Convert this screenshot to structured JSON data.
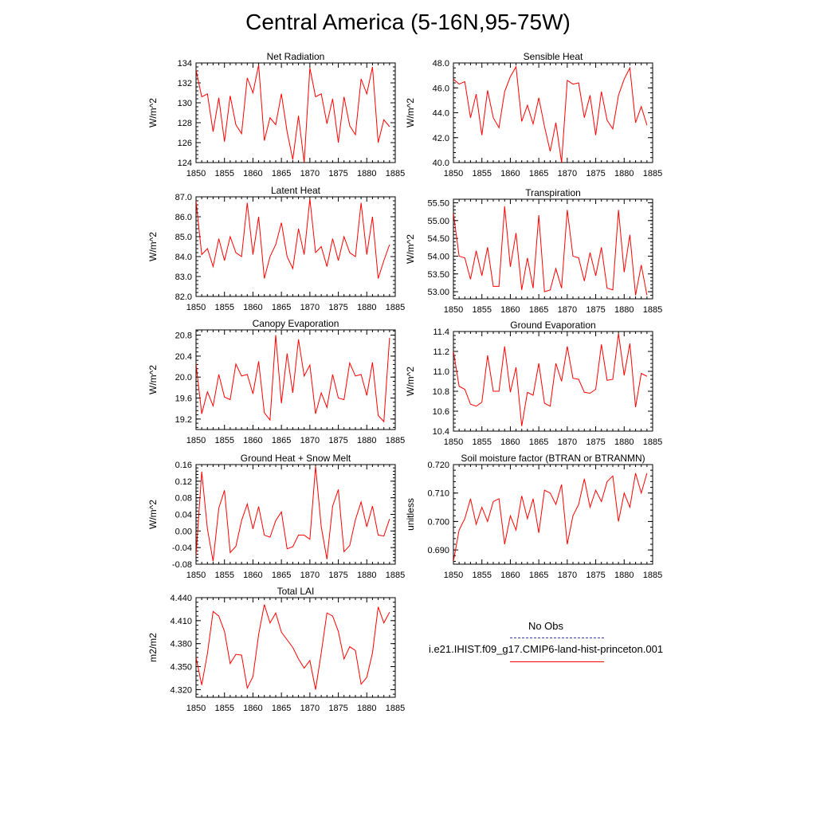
{
  "title": "Central America (5-16N,95-75W)",
  "colors": {
    "model_line": "#ff0000",
    "obs_line": "#3a3aa8"
  },
  "legend": {
    "obs_label": "No Obs",
    "model_label": "i.e21.IHIST.f09_g17.CMIP6-land-hist-princeton.001"
  },
  "chart_data": [
    {
      "type": "line",
      "title": "Net Radiation",
      "ylabel": "W/m^2",
      "xlim": [
        1850,
        1885
      ],
      "ylim": [
        124,
        134
      ],
      "xticks": [
        "1850",
        "1855",
        "1860",
        "1865",
        "1870",
        "1875",
        "1880",
        "1885"
      ],
      "yticks": [
        "124",
        "126",
        "128",
        "130",
        "132",
        "134"
      ],
      "series": [
        {
          "values": [
            133.3,
            130.6,
            130.9,
            127.1,
            130.5,
            126.1,
            130.7,
            127.8,
            126.9,
            132.5,
            131.0,
            133.8,
            126.2,
            128.5,
            127.8,
            130.9,
            127.1,
            124.3,
            128.7,
            124.0,
            133.5,
            130.6,
            130.9,
            127.9,
            130.4,
            126.0,
            130.6,
            127.7,
            126.8,
            132.4,
            130.9,
            133.6,
            126.0,
            128.3,
            127.6
          ]
        }
      ]
    },
    {
      "type": "line",
      "title": "Sensible Heat",
      "ylabel": "W/m^2",
      "xlim": [
        1850,
        1885
      ],
      "ylim": [
        40.0,
        48.0
      ],
      "xticks": [
        "1850",
        "1855",
        "1860",
        "1865",
        "1870",
        "1875",
        "1880",
        "1885"
      ],
      "yticks": [
        "40.0",
        "42.0",
        "44.0",
        "46.0",
        "48.0"
      ],
      "series": [
        {
          "values": [
            46.7,
            46.3,
            46.5,
            43.6,
            45.5,
            42.2,
            45.8,
            43.6,
            42.8,
            45.7,
            46.9,
            47.7,
            43.3,
            44.6,
            43.1,
            45.2,
            42.9,
            40.9,
            43.2,
            40.0,
            46.6,
            46.3,
            46.4,
            43.6,
            45.4,
            42.2,
            45.7,
            43.4,
            42.7,
            45.4,
            46.7,
            47.6,
            43.2,
            44.5,
            43.0
          ]
        }
      ]
    },
    {
      "type": "line",
      "title": "Latent Heat",
      "ylabel": "W/m^2",
      "xlim": [
        1850,
        1885
      ],
      "ylim": [
        82.0,
        87.0
      ],
      "xticks": [
        "1850",
        "1855",
        "1860",
        "1865",
        "1870",
        "1875",
        "1880",
        "1885"
      ],
      "yticks": [
        "82.0",
        "83.0",
        "84.0",
        "85.0",
        "86.0",
        "87.0"
      ],
      "series": [
        {
          "values": [
            86.8,
            84.1,
            84.4,
            83.5,
            84.9,
            83.8,
            85.0,
            84.2,
            84.0,
            86.7,
            84.1,
            86.0,
            82.9,
            84.0,
            84.6,
            85.7,
            84.0,
            83.4,
            85.4,
            84.1,
            86.9,
            84.2,
            84.5,
            83.5,
            84.9,
            83.8,
            85.0,
            84.2,
            84.0,
            86.7,
            84.1,
            86.0,
            82.9,
            83.8,
            84.6
          ]
        }
      ]
    },
    {
      "type": "line",
      "title": "Transpiration",
      "ylabel": "W/m^2",
      "xlim": [
        1850,
        1885
      ],
      "ylim": [
        52.8,
        55.6
      ],
      "xticks": [
        "1850",
        "1855",
        "1860",
        "1865",
        "1870",
        "1875",
        "1880",
        "1885"
      ],
      "yticks": [
        "53.00",
        "53.50",
        "54.00",
        "54.50",
        "55.00",
        "55.50"
      ],
      "series": [
        {
          "values": [
            55.2,
            54.0,
            53.95,
            53.35,
            54.15,
            53.45,
            54.25,
            53.15,
            53.15,
            55.4,
            53.7,
            54.65,
            53.05,
            53.95,
            53.1,
            55.15,
            53.0,
            53.05,
            53.65,
            53.1,
            55.3,
            54.0,
            53.95,
            53.3,
            54.1,
            53.45,
            54.25,
            53.1,
            53.05,
            55.3,
            53.55,
            54.6,
            52.9,
            53.75,
            52.9
          ]
        }
      ]
    },
    {
      "type": "line",
      "title": "Canopy Evaporation",
      "ylabel": "W/m^2",
      "xlim": [
        1850,
        1885
      ],
      "ylim": [
        19.0,
        20.9
      ],
      "xticks": [
        "1850",
        "1855",
        "1860",
        "1865",
        "1870",
        "1875",
        "1880",
        "1885"
      ],
      "yticks": [
        "19.2",
        "19.6",
        "20.0",
        "20.4",
        "20.8"
      ],
      "series": [
        {
          "values": [
            20.25,
            19.3,
            19.72,
            19.45,
            20.05,
            19.62,
            19.57,
            20.25,
            20.02,
            20.05,
            19.68,
            20.3,
            19.32,
            19.18,
            20.8,
            19.5,
            20.45,
            19.7,
            20.72,
            20.02,
            20.23,
            19.3,
            19.7,
            19.42,
            20.05,
            19.6,
            19.57,
            20.27,
            20.02,
            20.05,
            19.65,
            20.28,
            19.27,
            19.15,
            20.75
          ]
        }
      ]
    },
    {
      "type": "line",
      "title": "Ground Evaporation",
      "ylabel": "W/m^2",
      "xlim": [
        1850,
        1885
      ],
      "ylim": [
        10.4,
        11.4
      ],
      "xticks": [
        "1850",
        "1855",
        "1860",
        "1865",
        "1870",
        "1875",
        "1880",
        "1885"
      ],
      "yticks": [
        "10.4",
        "10.6",
        "10.8",
        "11.0",
        "11.2",
        "11.4"
      ],
      "series": [
        {
          "values": [
            11.2,
            10.85,
            10.82,
            10.67,
            10.65,
            10.69,
            11.16,
            10.8,
            10.8,
            11.25,
            10.79,
            11.04,
            10.45,
            10.79,
            10.76,
            11.08,
            10.68,
            10.65,
            11.08,
            10.9,
            11.25,
            10.93,
            10.92,
            10.79,
            10.78,
            10.82,
            11.27,
            10.91,
            10.92,
            11.38,
            10.96,
            11.28,
            10.64,
            10.98,
            10.95
          ]
        }
      ]
    },
    {
      "type": "line",
      "title": "Ground Heat + Snow Melt",
      "ylabel": "W/m^2",
      "xlim": [
        1850,
        1885
      ],
      "ylim": [
        -0.08,
        0.16
      ],
      "xticks": [
        "1850",
        "1855",
        "1860",
        "1865",
        "1870",
        "1875",
        "1880",
        "1885"
      ],
      "yticks": [
        "-0.08",
        "-0.04",
        "0.00",
        "0.04",
        "0.08",
        "0.12",
        "0.16"
      ],
      "series": [
        {
          "values": [
            -0.06,
            0.143,
            0.005,
            -0.073,
            0.055,
            0.098,
            -0.052,
            -0.037,
            0.025,
            0.065,
            0.005,
            0.059,
            -0.01,
            -0.015,
            0.025,
            0.046,
            -0.043,
            -0.038,
            -0.01,
            -0.01,
            -0.02,
            0.156,
            0.01,
            -0.068,
            0.06,
            0.1,
            -0.05,
            -0.035,
            0.027,
            0.07,
            0.01,
            0.06,
            -0.01,
            -0.012,
            0.029
          ]
        }
      ]
    },
    {
      "type": "line",
      "title": "Soil moisture factor (BTRAN or BTRANMN)",
      "ylabel": "unitless",
      "xlim": [
        1850,
        1885
      ],
      "ylim": [
        0.685,
        0.72
      ],
      "xticks": [
        "1850",
        "1855",
        "1860",
        "1865",
        "1870",
        "1875",
        "1880",
        "1885"
      ],
      "yticks": [
        "0.690",
        "0.700",
        "0.710",
        "0.720"
      ],
      "series": [
        {
          "values": [
            0.686,
            0.697,
            0.701,
            0.708,
            0.699,
            0.705,
            0.7,
            0.707,
            0.708,
            0.692,
            0.702,
            0.697,
            0.709,
            0.701,
            0.708,
            0.696,
            0.711,
            0.71,
            0.706,
            0.713,
            0.692,
            0.702,
            0.706,
            0.715,
            0.705,
            0.711,
            0.707,
            0.714,
            0.716,
            0.7,
            0.71,
            0.705,
            0.717,
            0.71,
            0.717
          ]
        }
      ]
    },
    {
      "type": "line",
      "title": "Total LAI",
      "ylabel": "m2/m2",
      "xlim": [
        1850,
        1885
      ],
      "ylim": [
        4.31,
        4.44
      ],
      "xticks": [
        "1850",
        "1855",
        "1860",
        "1865",
        "1870",
        "1875",
        "1880",
        "1885"
      ],
      "yticks": [
        "4.320",
        "4.350",
        "4.380",
        "4.410",
        "4.440"
      ],
      "series": [
        {
          "values": [
            4.362,
            4.326,
            4.367,
            4.422,
            4.416,
            4.396,
            4.354,
            4.366,
            4.365,
            4.322,
            4.337,
            4.392,
            4.431,
            4.407,
            4.42,
            4.395,
            4.385,
            4.375,
            4.36,
            4.348,
            4.358,
            4.32,
            4.368,
            4.42,
            4.416,
            4.396,
            4.36,
            4.376,
            4.371,
            4.327,
            4.336,
            4.368,
            4.428,
            4.407,
            4.421
          ]
        }
      ]
    }
  ]
}
